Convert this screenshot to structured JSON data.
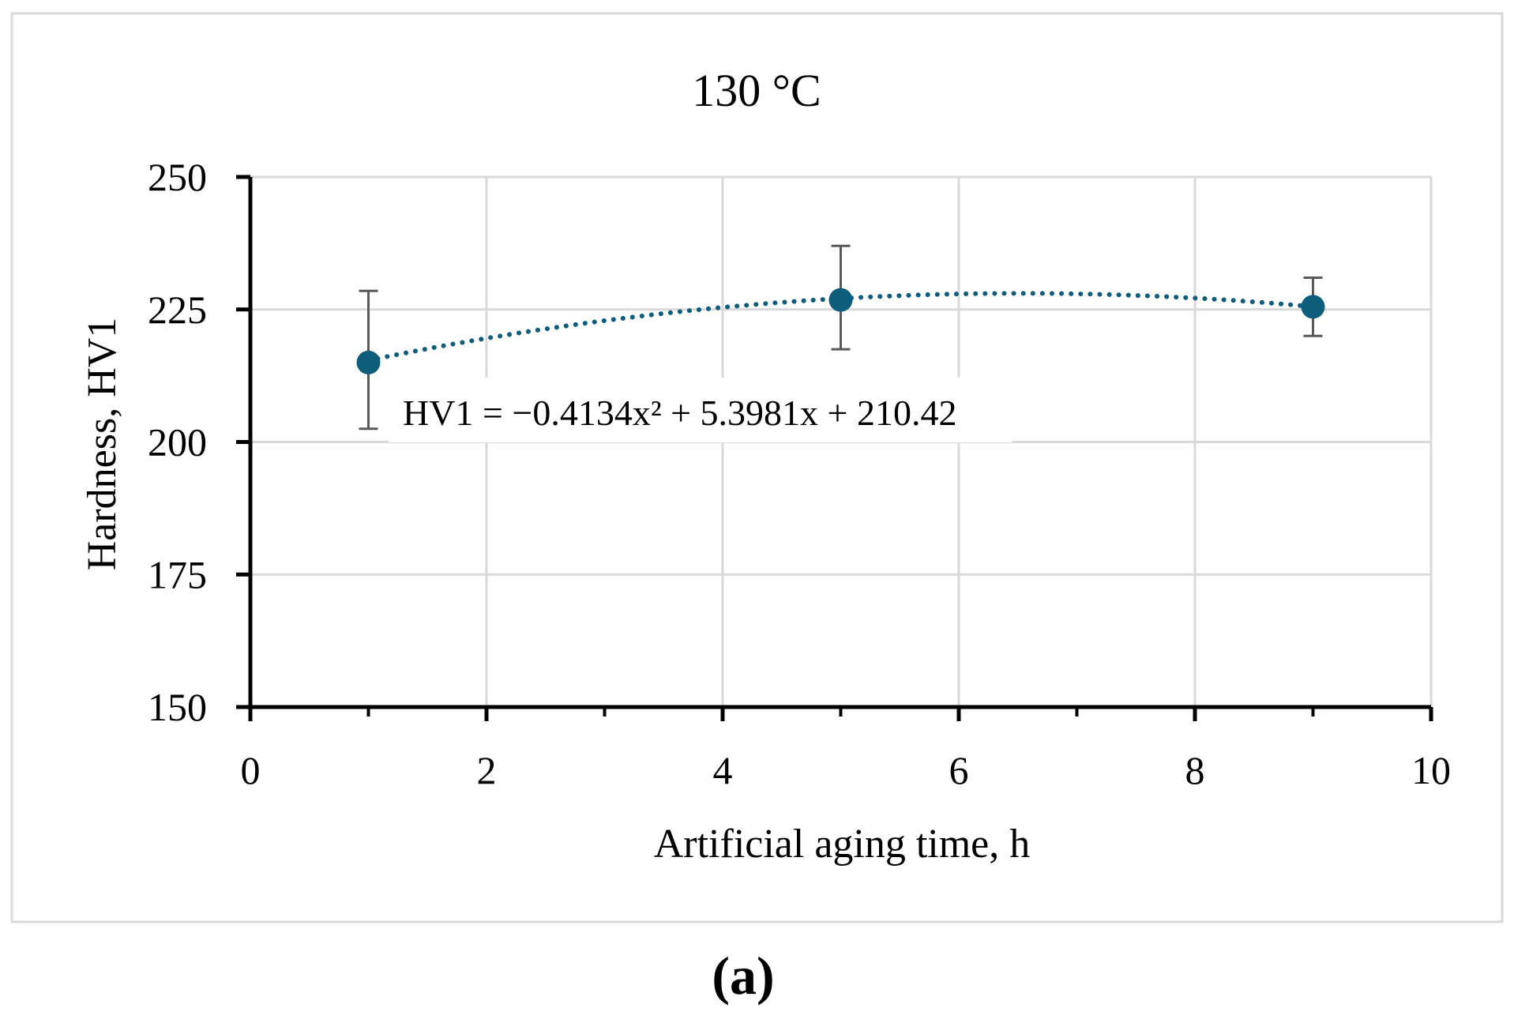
{
  "chart_data": {
    "type": "scatter",
    "title": "130 °C",
    "xlabel": "Artificial aging time, h",
    "ylabel": "Hardness, HV1",
    "xlim": [
      0,
      10
    ],
    "ylim": [
      150,
      250
    ],
    "x_ticks": [
      0,
      2,
      4,
      6,
      8,
      10
    ],
    "y_ticks": [
      150,
      175,
      200,
      225,
      250
    ],
    "grid": true,
    "series": [
      {
        "name": "HV1",
        "x": [
          1,
          5,
          9
        ],
        "y": [
          215,
          226.8,
          225.5
        ],
        "error_low": [
          202.5,
          217.5,
          220
        ],
        "error_high": [
          228.5,
          237,
          231
        ],
        "color": "#0e5d7a"
      }
    ],
    "trendline": {
      "type": "polynomial",
      "order": 2,
      "coefficients": [
        -0.4134,
        5.3981,
        210.42
      ],
      "x_range": [
        1,
        9
      ],
      "style": "dotted",
      "color": "#0e5d7a"
    },
    "annotations": [
      {
        "text": "HV1 = −0.4134x² + 5.3981x + 210.42"
      }
    ]
  },
  "panel_label": "(a)",
  "colors": {
    "marker": "#0e5d7a",
    "grid": "#d9d9d9",
    "axis": "#000000",
    "error_bar": "#595959",
    "frame": "#d9d9d9"
  }
}
